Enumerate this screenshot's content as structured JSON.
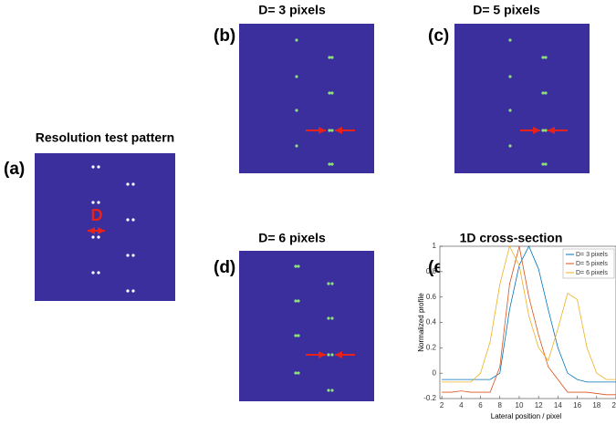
{
  "panels": [
    {
      "label": "(a)",
      "title": "Resolution test pattern",
      "annotation": "D"
    },
    {
      "label": "(b)",
      "title": "D= 3 pixels"
    },
    {
      "label": "(c)",
      "title": "D= 5 pixels"
    },
    {
      "label": "(d)",
      "title": "D= 6 pixels"
    }
  ],
  "chart_data": {
    "type": "line",
    "label": "(e)",
    "title": "1D cross-section",
    "xlabel": "Lateral position / pixel",
    "ylabel": "Normalized profile",
    "x": [
      2,
      3,
      4,
      5,
      6,
      7,
      8,
      9,
      10,
      11,
      12,
      13,
      14,
      15,
      16,
      17,
      18,
      19,
      20
    ],
    "series": [
      {
        "name": "D= 3 pixels",
        "color": "#0072bd",
        "values": [
          -0.05,
          -0.05,
          -0.05,
          -0.05,
          -0.05,
          -0.05,
          0.0,
          0.5,
          0.85,
          1.0,
          0.82,
          0.5,
          0.2,
          0.0,
          -0.05,
          -0.07,
          -0.07,
          -0.07,
          -0.07
        ]
      },
      {
        "name": "D= 5 pixels",
        "color": "#d95319",
        "values": [
          -0.15,
          -0.15,
          -0.14,
          -0.15,
          -0.15,
          -0.15,
          0.05,
          0.7,
          1.0,
          0.6,
          0.3,
          0.05,
          -0.05,
          -0.15,
          -0.15,
          -0.15,
          -0.16,
          -0.17,
          -0.17
        ]
      },
      {
        "name": "D= 6 pixels",
        "color": "#edb120",
        "values": [
          -0.07,
          -0.07,
          -0.07,
          -0.07,
          0.0,
          0.25,
          0.7,
          1.0,
          0.85,
          0.45,
          0.2,
          0.1,
          0.35,
          0.63,
          0.58,
          0.2,
          0.0,
          -0.05,
          -0.05
        ]
      }
    ],
    "xlim": [
      1.8,
      20
    ],
    "ylim": [
      -0.2,
      1
    ],
    "xticks": [
      2,
      4,
      6,
      8,
      10,
      12,
      14,
      16,
      18,
      20
    ],
    "yticks": [
      -0.2,
      0,
      0.2,
      0.4,
      0.6,
      0.8,
      1
    ],
    "legend": "upper right"
  }
}
